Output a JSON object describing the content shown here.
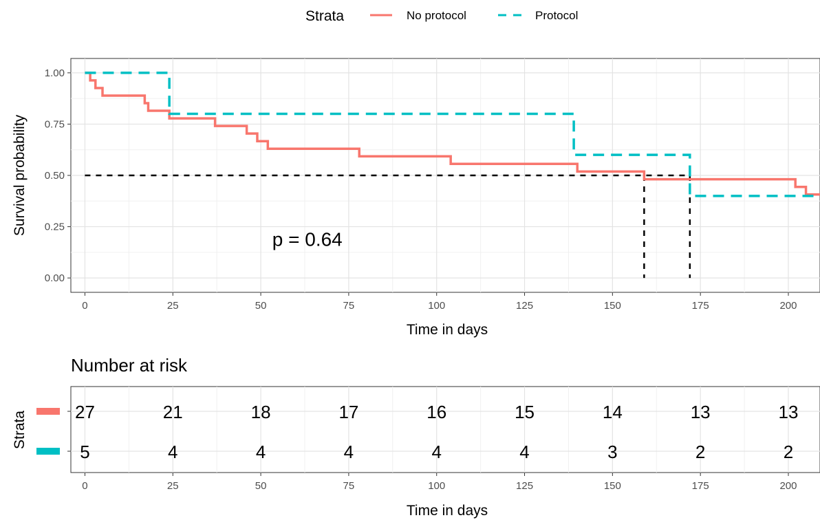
{
  "legend": {
    "title": "Strata",
    "items": [
      {
        "label": "No protocol",
        "color": "#F8766D",
        "dash": "solid"
      },
      {
        "label": "Protocol",
        "color": "#00BFC4",
        "dash": "dashed"
      }
    ]
  },
  "chart_data": [
    {
      "type": "line",
      "subtype": "kaplan-meier step",
      "xlabel": "Time in days",
      "ylabel": "Survival probability",
      "xlim": [
        -4,
        209
      ],
      "ylim": [
        -0.07,
        1.07
      ],
      "x_ticks": [
        0,
        25,
        50,
        75,
        100,
        125,
        150,
        175,
        200
      ],
      "y_ticks": [
        0,
        0.25,
        0.5,
        0.75,
        1.0
      ],
      "y_tick_labels": [
        "0.00",
        "0.25",
        "0.50",
        "0.75",
        "1.00"
      ],
      "grid": true,
      "annotation": "p = 0.64",
      "annotation_at": {
        "x": 65,
        "y": 0.19
      },
      "median_line": {
        "y": 0.5,
        "x_start": 0,
        "medians": [
          159,
          172
        ],
        "color": "#000000"
      },
      "series": [
        {
          "name": "No protocol",
          "color": "#F8766D",
          "dash": "solid",
          "steps": [
            [
              0,
              1.0
            ],
            [
              1.5,
              0.963
            ],
            [
              3,
              0.926
            ],
            [
              5,
              0.889
            ],
            [
              17,
              0.852
            ],
            [
              18,
              0.815
            ],
            [
              24,
              0.778
            ],
            [
              37,
              0.741
            ],
            [
              46,
              0.704
            ],
            [
              49,
              0.667
            ],
            [
              52,
              0.63
            ],
            [
              78,
              0.593
            ],
            [
              104,
              0.556
            ],
            [
              140,
              0.519
            ],
            [
              159,
              0.481
            ],
            [
              202,
              0.444
            ],
            [
              205,
              0.407
            ],
            [
              209,
              0.407
            ]
          ]
        },
        {
          "name": "Protocol",
          "color": "#00BFC4",
          "dash": "dashed",
          "steps": [
            [
              0,
              1.0
            ],
            [
              24,
              0.8
            ],
            [
              139,
              0.6
            ],
            [
              172,
              0.4
            ],
            [
              209,
              0.4
            ]
          ]
        }
      ]
    },
    {
      "type": "table",
      "title": "Number at risk",
      "xlabel": "Time in days",
      "ylabel": "Strata",
      "x_ticks": [
        0,
        25,
        50,
        75,
        100,
        125,
        150,
        175,
        200
      ],
      "rows": [
        {
          "strata": "No protocol",
          "color": "#F8766D",
          "values": [
            27,
            21,
            18,
            17,
            16,
            15,
            14,
            13,
            13
          ]
        },
        {
          "strata": "Protocol",
          "color": "#00BFC4",
          "values": [
            5,
            4,
            4,
            4,
            4,
            4,
            3,
            2,
            2
          ]
        }
      ]
    }
  ]
}
